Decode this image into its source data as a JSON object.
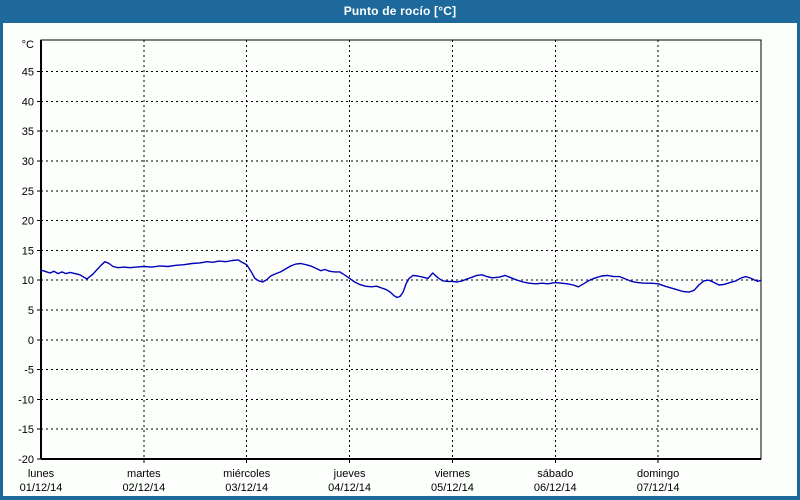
{
  "window": {
    "title": "Punto de rocío [°C]"
  },
  "colors": {
    "frame_blue": "#1e699b",
    "title_text": "#ffffff",
    "plot_background": "#fcfffc",
    "grid_black": "#000000",
    "line_blue": "#0000bb"
  },
  "chart_data": {
    "type": "line",
    "title": "Punto de rocío [°C]",
    "xlabel": "",
    "ylabel": "",
    "y_unit": "°C",
    "ylim": [
      -20,
      50
    ],
    "y_tick_step": 5,
    "y_ticks": [
      45,
      40,
      35,
      30,
      25,
      20,
      15,
      10,
      5,
      0,
      -5,
      -10,
      -15,
      -20
    ],
    "grid": "dashed",
    "legend": "none",
    "x_range_days": 7,
    "x_tick_hours_step": 24,
    "x_days": [
      {
        "name": "lunes",
        "date": "01/12/14"
      },
      {
        "name": "martes",
        "date": "02/12/14"
      },
      {
        "name": "miércoles",
        "date": "03/12/14"
      },
      {
        "name": "jueves",
        "date": "04/12/14"
      },
      {
        "name": "viernes",
        "date": "05/12/14"
      },
      {
        "name": "sábado",
        "date": "06/12/14"
      },
      {
        "name": "domingo",
        "date": "07/12/14"
      }
    ],
    "series": [
      {
        "name": "Punto de rocío",
        "color": "#0000bb",
        "points_hours_degC": [
          [
            0,
            11.7
          ],
          [
            0.9,
            11.5
          ],
          [
            2.1,
            11.2
          ],
          [
            3,
            11.5
          ],
          [
            4,
            11.1
          ],
          [
            4.9,
            11.4
          ],
          [
            5.8,
            11.1
          ],
          [
            6.8,
            11.3
          ],
          [
            7.9,
            11.1
          ],
          [
            9.1,
            10.9
          ],
          [
            10,
            10.5
          ],
          [
            10.7,
            10.2
          ],
          [
            11.4,
            10.6
          ],
          [
            12.1,
            11
          ],
          [
            13.1,
            11.8
          ],
          [
            14,
            12.5
          ],
          [
            14.9,
            13.1
          ],
          [
            15.9,
            12.8
          ],
          [
            16.8,
            12.3
          ],
          [
            18,
            12.1
          ],
          [
            19.4,
            12.2
          ],
          [
            20.8,
            12.1
          ],
          [
            22.2,
            12.2
          ],
          [
            24,
            12.3
          ],
          [
            25.9,
            12.2
          ],
          [
            27.8,
            12.4
          ],
          [
            29.6,
            12.3
          ],
          [
            31.5,
            12.5
          ],
          [
            33.4,
            12.6
          ],
          [
            35.2,
            12.8
          ],
          [
            37.1,
            12.9
          ],
          [
            38.7,
            13.1
          ],
          [
            40.1,
            13
          ],
          [
            41.5,
            13.2
          ],
          [
            43.2,
            13.1
          ],
          [
            44.6,
            13.3
          ],
          [
            46,
            13.4
          ],
          [
            46.9,
            13
          ],
          [
            48,
            12.6
          ],
          [
            48.9,
            11.6
          ],
          [
            49.9,
            10.3
          ],
          [
            50.8,
            9.9
          ],
          [
            51.7,
            9.7
          ],
          [
            52.7,
            10.1
          ],
          [
            53.6,
            10.7
          ],
          [
            54.8,
            11.1
          ],
          [
            55.9,
            11.4
          ],
          [
            57.1,
            11.9
          ],
          [
            58.3,
            12.4
          ],
          [
            59.4,
            12.7
          ],
          [
            60.6,
            12.8
          ],
          [
            61.8,
            12.6
          ],
          [
            62.9,
            12.4
          ],
          [
            64.1,
            12
          ],
          [
            65.3,
            11.6
          ],
          [
            66.2,
            11.8
          ],
          [
            67.4,
            11.5
          ],
          [
            68.5,
            11.4
          ],
          [
            69.7,
            11.4
          ],
          [
            70.8,
            10.9
          ],
          [
            72,
            10.3
          ],
          [
            73.2,
            9.7
          ],
          [
            74.3,
            9.3
          ],
          [
            75.7,
            9
          ],
          [
            77.1,
            8.9
          ],
          [
            78.3,
            9
          ],
          [
            79.4,
            8.7
          ],
          [
            80.6,
            8.4
          ],
          [
            81.5,
            8
          ],
          [
            82.4,
            7.4
          ],
          [
            83.1,
            7.1
          ],
          [
            83.8,
            7.3
          ],
          [
            84.5,
            8
          ],
          [
            85.2,
            9.4
          ],
          [
            85.9,
            10.3
          ],
          [
            86.8,
            10.8
          ],
          [
            87.9,
            10.7
          ],
          [
            89.1,
            10.5
          ],
          [
            90.3,
            10.3
          ],
          [
            91.4,
            11.2
          ],
          [
            92.6,
            10.4
          ],
          [
            93.7,
            9.9
          ],
          [
            94.9,
            9.8
          ],
          [
            96,
            9.8
          ],
          [
            97.1,
            9.7
          ],
          [
            98.3,
            9.9
          ],
          [
            99.4,
            10.2
          ],
          [
            100.6,
            10.5
          ],
          [
            101.7,
            10.8
          ],
          [
            102.9,
            10.9
          ],
          [
            104.1,
            10.6
          ],
          [
            105.2,
            10.4
          ],
          [
            106.9,
            10.5
          ],
          [
            108.3,
            10.8
          ],
          [
            109.7,
            10.4
          ],
          [
            111.1,
            10
          ],
          [
            112.5,
            9.7
          ],
          [
            113.9,
            9.5
          ],
          [
            115.5,
            9.4
          ],
          [
            116.9,
            9.5
          ],
          [
            118.3,
            9.4
          ],
          [
            120,
            9.6
          ],
          [
            121.4,
            9.5
          ],
          [
            122.8,
            9.4
          ],
          [
            124.2,
            9.2
          ],
          [
            125.4,
            8.9
          ],
          [
            126.6,
            9.4
          ],
          [
            128,
            10
          ],
          [
            129.4,
            10.4
          ],
          [
            130.8,
            10.7
          ],
          [
            132.2,
            10.8
          ],
          [
            133.6,
            10.6
          ],
          [
            135,
            10.6
          ],
          [
            136.4,
            10.2
          ],
          [
            137.8,
            9.8
          ],
          [
            139.2,
            9.6
          ],
          [
            140.8,
            9.5
          ],
          [
            142.4,
            9.5
          ],
          [
            144,
            9.4
          ],
          [
            145.6,
            9
          ],
          [
            147,
            8.7
          ],
          [
            148.4,
            8.4
          ],
          [
            149.8,
            8.1
          ],
          [
            151.2,
            8
          ],
          [
            152.4,
            8.3
          ],
          [
            153.5,
            9.2
          ],
          [
            154.7,
            9.9
          ],
          [
            155.9,
            10
          ],
          [
            157.1,
            9.6
          ],
          [
            158.2,
            9.2
          ],
          [
            159.4,
            9.3
          ],
          [
            160.8,
            9.6
          ],
          [
            162.2,
            9.9
          ],
          [
            163.4,
            10.4
          ],
          [
            164.5,
            10.6
          ],
          [
            165.7,
            10.3
          ],
          [
            166.6,
            10
          ],
          [
            167.3,
            9.8
          ],
          [
            168,
            10
          ]
        ]
      }
    ]
  }
}
